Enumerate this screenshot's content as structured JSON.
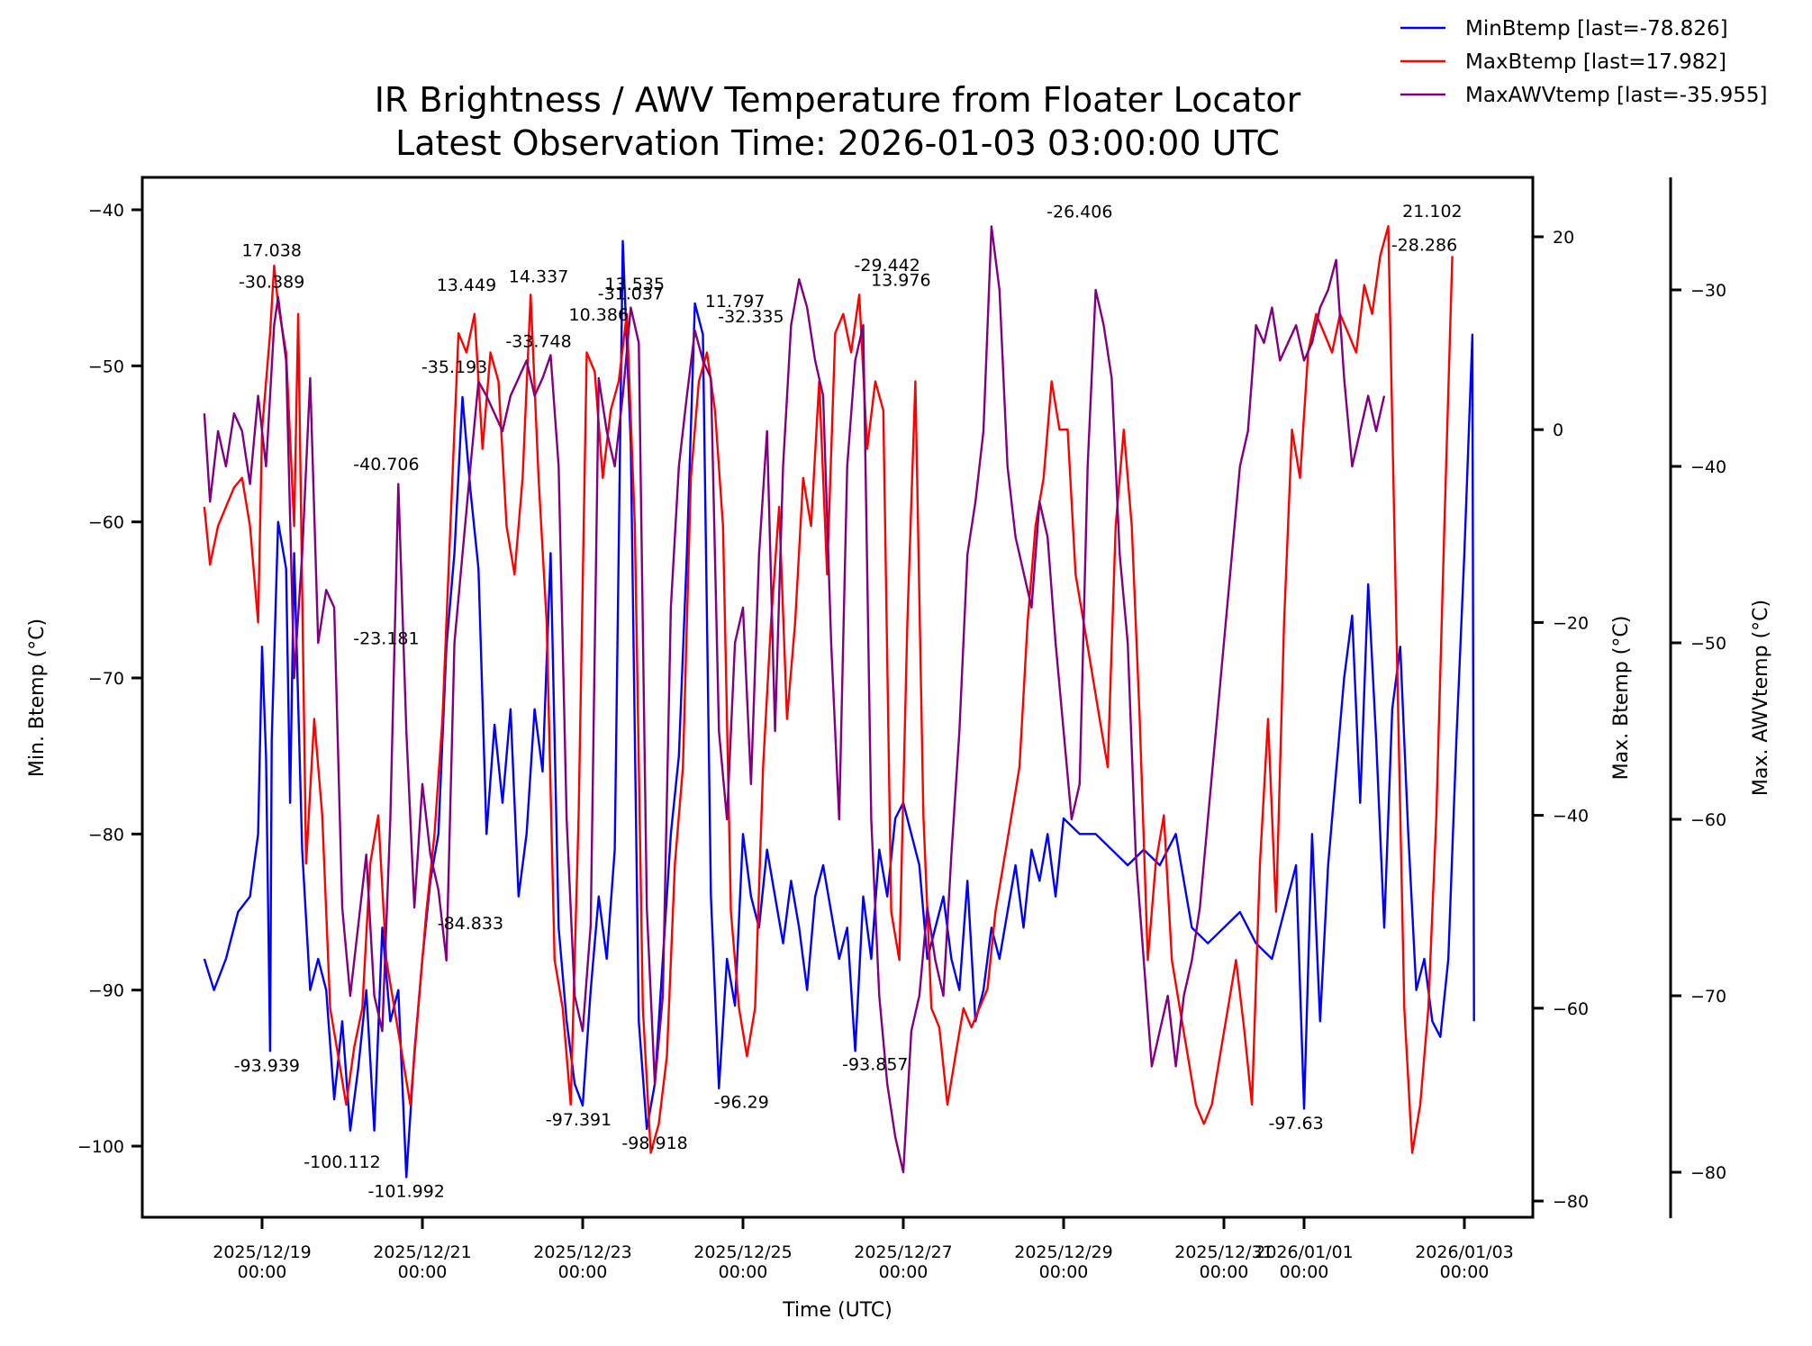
{
  "chart_data": {
    "type": "line",
    "title": "IR Brightness / AWV Temperature from Floater Locator",
    "subtitle": "Latest Observation Time: 2026-01-03 03:00:00 UTC",
    "xlabel": "Time (UTC)",
    "x_start": "2025-12-18T06:45:00Z",
    "x_end": "2026-01-03T03:00:00Z",
    "xlim_days_from_2025_12_19": [
      -1.16,
      15.48
    ],
    "x_ticks": [
      {
        "day": 0,
        "label": [
          "2025/12/19",
          "00:00"
        ]
      },
      {
        "day": 2,
        "label": [
          "2025/12/21",
          "00:00"
        ]
      },
      {
        "day": 4,
        "label": [
          "2025/12/23",
          "00:00"
        ]
      },
      {
        "day": 6,
        "label": [
          "2025/12/25",
          "00:00"
        ]
      },
      {
        "day": 8,
        "label": [
          "2025/12/27",
          "00:00"
        ]
      },
      {
        "day": 10,
        "label": [
          "2025/12/29",
          "00:00"
        ]
      },
      {
        "day": 12,
        "label": [
          "2025/12/31",
          "00:00"
        ]
      },
      {
        "day": 13,
        "label": [
          "2026/01/01",
          "00:00"
        ]
      },
      {
        "day": 15,
        "label": [
          "2026/01/03",
          "00:00"
        ]
      }
    ],
    "axes": [
      {
        "id": "left",
        "label": "Min. Btemp (°C)",
        "ylim": [
          -105,
          -38
        ],
        "ticks": [
          -40,
          -50,
          -60,
          -70,
          -80,
          -90,
          -100
        ],
        "tick_labels": [
          "−40",
          "−50",
          "−60",
          "−70",
          "−80",
          "−90",
          "−100"
        ]
      },
      {
        "id": "right1",
        "label": "Max. Btemp (°C)",
        "ylim": [
          -82,
          25
        ],
        "ticks": [
          20,
          0,
          -20,
          -40,
          -60,
          -80
        ],
        "tick_labels": [
          "20",
          "0",
          "−20",
          "−40",
          "−60",
          "−80"
        ]
      },
      {
        "id": "right2",
        "label": "Max. AWVtemp (°C)",
        "ylim": [
          -83,
          -30.8
        ],
        "ticks": [
          -30,
          -40,
          -50,
          -60,
          -70,
          -80
        ],
        "tick_labels": [
          "−30",
          "−40",
          "−50",
          "−60",
          "−70",
          "−80"
        ]
      }
    ],
    "legend": {
      "placement": "top-right",
      "entries": [
        {
          "label": "MinBtemp [last=-78.826]",
          "color": "#0000ff"
        },
        {
          "label": "MaxBtemp [last=17.982]",
          "color": "#ff0000"
        },
        {
          "label": "MaxAWVtemp [last=-35.955]",
          "color": "#800080"
        }
      ]
    },
    "series": [
      {
        "name": "MinBtemp",
        "axis": "left",
        "color": "#0000ff",
        "last": -78.826,
        "x_days": [
          -0.72,
          -0.6,
          -0.45,
          -0.3,
          -0.15,
          -0.05,
          0.0,
          0.05,
          0.1,
          0.12,
          0.2,
          0.3,
          0.35,
          0.4,
          0.5,
          0.6,
          0.7,
          0.8,
          0.9,
          1.0,
          1.1,
          1.2,
          1.3,
          1.4,
          1.5,
          1.6,
          1.7,
          1.8,
          1.9,
          2.0,
          2.1,
          2.2,
          2.3,
          2.4,
          2.5,
          2.6,
          2.7,
          2.8,
          2.9,
          3.0,
          3.1,
          3.2,
          3.3,
          3.4,
          3.5,
          3.6,
          3.7,
          3.8,
          3.9,
          4.0,
          4.1,
          4.2,
          4.3,
          4.4,
          4.5,
          4.6,
          4.7,
          4.8,
          4.9,
          5.0,
          5.1,
          5.2,
          5.3,
          5.4,
          5.5,
          5.6,
          5.7,
          5.8,
          5.9,
          6.0,
          6.1,
          6.2,
          6.3,
          6.4,
          6.5,
          6.6,
          6.7,
          6.8,
          6.9,
          7.0,
          7.1,
          7.2,
          7.3,
          7.4,
          7.5,
          7.6,
          7.7,
          7.8,
          7.9,
          8.0,
          8.1,
          8.2,
          8.3,
          8.4,
          8.5,
          8.6,
          8.7,
          8.8,
          8.9,
          9.0,
          9.1,
          9.2,
          9.3,
          9.4,
          9.5,
          9.6,
          9.7,
          9.8,
          9.9,
          10.0,
          10.2,
          10.4,
          10.6,
          10.8,
          11.0,
          11.2,
          11.4,
          11.6,
          11.8,
          12.0,
          12.2,
          12.4,
          12.6,
          12.8,
          12.9,
          13.0,
          13.1,
          13.2,
          13.3,
          13.4,
          13.5,
          13.6,
          13.7,
          13.8,
          13.9,
          14.0,
          14.1,
          14.2,
          14.3,
          14.4,
          14.5,
          14.6,
          14.7,
          14.8,
          14.9,
          15.0,
          15.1,
          15.12
        ],
        "values": [
          -88,
          -90,
          -88,
          -85,
          -84,
          -80,
          -68,
          -75,
          -93.9,
          -74,
          -60,
          -63,
          -78,
          -62,
          -81,
          -90,
          -88,
          -90,
          -97,
          -92,
          -99,
          -95,
          -90,
          -99,
          -86,
          -92,
          -90,
          -101.99,
          -94,
          -88,
          -83,
          -80,
          -68,
          -62,
          -52,
          -58,
          -63,
          -80,
          -73,
          -78,
          -72,
          -84,
          -80,
          -72,
          -76,
          -62,
          -86,
          -92,
          -96,
          -97.4,
          -90,
          -84,
          -88,
          -81,
          -42,
          -55,
          -92,
          -98.9,
          -96,
          -88,
          -80,
          -75,
          -62,
          -46,
          -48,
          -84,
          -96.3,
          -88,
          -91,
          -80,
          -84,
          -86,
          -81,
          -84,
          -87,
          -83,
          -86,
          -90,
          -84,
          -82,
          -85,
          -88,
          -86,
          -93.9,
          -84,
          -88,
          -81,
          -84,
          -79,
          -78,
          -80,
          -82,
          -88,
          -86,
          -84,
          -88,
          -90,
          -83,
          -92,
          -90,
          -86,
          -88,
          -85,
          -82,
          -86,
          -81,
          -83,
          -80,
          -84,
          -79,
          -80,
          -80,
          -81,
          -82,
          -81,
          -82,
          -80,
          -86,
          -87,
          -86,
          -85,
          -87,
          -88,
          -84,
          -82,
          -97.6,
          -80,
          -92,
          -82,
          -76,
          -70,
          -66,
          -78,
          -64,
          -74,
          -86,
          -72,
          -68,
          -80,
          -90,
          -88,
          -92,
          -93,
          -88,
          -74,
          -62,
          -48,
          -92,
          -80,
          -78.8
        ]
      },
      {
        "name": "MaxBtemp",
        "axis": "right1",
        "color": "#ff0000",
        "last": 17.982,
        "annotations": [
          17.038,
          13.449,
          14.337,
          10.386,
          13.535,
          11.797,
          13.976,
          21.102,
          -23.181,
          -100.112,
          -98.918
        ],
        "x_days": [
          -0.72,
          -0.65,
          -0.55,
          -0.45,
          -0.35,
          -0.25,
          -0.15,
          -0.05,
          0.0,
          0.1,
          0.15,
          0.2,
          0.3,
          0.4,
          0.45,
          0.55,
          0.65,
          0.75,
          0.85,
          0.95,
          1.05,
          1.15,
          1.25,
          1.35,
          1.45,
          1.55,
          1.65,
          1.75,
          1.85,
          1.95,
          2.05,
          2.15,
          2.25,
          2.35,
          2.45,
          2.55,
          2.65,
          2.75,
          2.85,
          2.95,
          3.05,
          3.15,
          3.25,
          3.35,
          3.45,
          3.55,
          3.65,
          3.75,
          3.85,
          3.95,
          4.05,
          4.15,
          4.25,
          4.35,
          4.45,
          4.55,
          4.65,
          4.75,
          4.85,
          4.95,
          5.05,
          5.15,
          5.25,
          5.35,
          5.45,
          5.55,
          5.65,
          5.75,
          5.85,
          5.95,
          6.05,
          6.15,
          6.25,
          6.35,
          6.45,
          6.55,
          6.65,
          6.75,
          6.85,
          6.95,
          7.05,
          7.15,
          7.25,
          7.35,
          7.45,
          7.55,
          7.65,
          7.75,
          7.85,
          7.95,
          8.05,
          8.15,
          8.25,
          8.35,
          8.45,
          8.55,
          8.65,
          8.75,
          8.85,
          8.95,
          9.05,
          9.15,
          9.25,
          9.35,
          9.45,
          9.55,
          9.65,
          9.75,
          9.85,
          9.95,
          10.05,
          10.15,
          10.25,
          10.35,
          10.45,
          10.55,
          10.65,
          10.75,
          10.85,
          10.95,
          11.05,
          11.15,
          11.25,
          11.35,
          11.45,
          11.55,
          11.65,
          11.75,
          11.85,
          11.95,
          12.05,
          12.15,
          12.25,
          12.35,
          12.45,
          12.55,
          12.65,
          12.75,
          12.85,
          12.95,
          13.05,
          13.15,
          13.25,
          13.35,
          13.45,
          13.55,
          13.65,
          13.75,
          13.85,
          13.95,
          14.05,
          14.15,
          14.25,
          14.35,
          14.45,
          14.55,
          14.65,
          14.75,
          14.85,
          14.95,
          15.05,
          15.12
        ],
        "values": [
          -8,
          -14,
          -10,
          -8,
          -6,
          -5,
          -10,
          -20,
          0,
          10,
          17,
          13,
          8,
          -10,
          12,
          -45,
          -30,
          -40,
          -60,
          -65,
          -70,
          -64,
          -60,
          -45,
          -40,
          -55,
          -60,
          -65,
          -70,
          -60,
          -50,
          -42,
          -30,
          -10,
          10,
          8,
          12,
          -2,
          8,
          5,
          -10,
          -15,
          -5,
          14,
          -5,
          -20,
          -55,
          -60,
          -70,
          -40,
          8,
          6,
          -5,
          2,
          5,
          12,
          -10,
          -60,
          -75,
          -72,
          -65,
          -45,
          -35,
          -5,
          5,
          8,
          2,
          -10,
          -50,
          -60,
          -65,
          -60,
          -35,
          -20,
          -8,
          -30,
          -20,
          -5,
          -10,
          5,
          -15,
          10,
          12,
          8,
          14,
          -2,
          5,
          2,
          -50,
          -55,
          -20,
          5,
          -40,
          -60,
          -62,
          -70,
          -65,
          -60,
          -62,
          -60,
          -58,
          -50,
          -45,
          -40,
          -35,
          -20,
          -10,
          -5,
          5,
          0,
          0,
          -15,
          -20,
          -25,
          -30,
          -35,
          -10,
          0,
          -10,
          -30,
          -55,
          -45,
          -40,
          -55,
          -60,
          -65,
          -70,
          -72,
          -70,
          -65,
          -60,
          -55,
          -62,
          -70,
          -45,
          -30,
          -50,
          -20,
          0,
          -5,
          8,
          12,
          10,
          8,
          12,
          10,
          8,
          15,
          12,
          18,
          21.1,
          -20,
          -60,
          -75,
          -70,
          -60,
          -40,
          -10,
          18
        ]
      },
      {
        "name": "MaxAWVtemp",
        "axis": "right2",
        "color": "#800080",
        "last": -35.955,
        "annotations": [
          -30.389,
          -35.193,
          -33.748,
          -31.037,
          -32.335,
          -29.442,
          -26.406,
          -28.286,
          -40.706
        ],
        "x_days": [
          -0.72,
          -0.65,
          -0.55,
          -0.45,
          -0.35,
          -0.25,
          -0.15,
          -0.05,
          0.05,
          0.15,
          0.2,
          0.3,
          0.4,
          0.5,
          0.6,
          0.7,
          0.8,
          0.9,
          1.0,
          1.1,
          1.2,
          1.3,
          1.4,
          1.5,
          1.6,
          1.7,
          1.8,
          1.9,
          2.0,
          2.1,
          2.2,
          2.3,
          2.4,
          2.5,
          2.6,
          2.7,
          2.8,
          2.9,
          3.0,
          3.1,
          3.2,
          3.3,
          3.4,
          3.5,
          3.6,
          3.7,
          3.8,
          3.9,
          4.0,
          4.1,
          4.2,
          4.3,
          4.4,
          4.5,
          4.6,
          4.7,
          4.8,
          4.9,
          5.0,
          5.1,
          5.2,
          5.3,
          5.4,
          5.5,
          5.6,
          5.7,
          5.8,
          5.9,
          6.0,
          6.1,
          6.2,
          6.3,
          6.4,
          6.5,
          6.6,
          6.7,
          6.8,
          6.9,
          7.0,
          7.1,
          7.2,
          7.3,
          7.4,
          7.5,
          7.6,
          7.7,
          7.8,
          7.9,
          8.0,
          8.1,
          8.2,
          8.3,
          8.4,
          8.5,
          8.6,
          8.7,
          8.8,
          8.9,
          9.0,
          9.1,
          9.2,
          9.3,
          9.4,
          9.5,
          9.6,
          9.7,
          9.8,
          9.9,
          10.0,
          10.1,
          10.2,
          10.3,
          10.4,
          10.5,
          10.6,
          10.7,
          10.8,
          10.9,
          11.0,
          11.1,
          11.2,
          11.3,
          11.4,
          11.5,
          11.6,
          11.7,
          11.8,
          11.9,
          12.0,
          12.1,
          12.2,
          12.3,
          12.4,
          12.5,
          12.6,
          12.7,
          12.8,
          12.9,
          13.0,
          13.1,
          13.2,
          13.3,
          13.4,
          13.5,
          13.6,
          13.7,
          13.8,
          13.9,
          14.0,
          14.1,
          14.2,
          14.3,
          14.4,
          14.5,
          14.6,
          14.7,
          14.8,
          14.9,
          15.0,
          15.1,
          15.12
        ],
        "values": [
          -37,
          -42,
          -38,
          -40,
          -37,
          -38,
          -41,
          -36,
          -40,
          -32,
          -30.4,
          -34,
          -52,
          -45,
          -35,
          -50,
          -47,
          -48,
          -65,
          -70,
          -66,
          -62,
          -70,
          -72,
          -60,
          -41,
          -55,
          -65,
          -58,
          -62,
          -64,
          -68,
          -50,
          -45,
          -40,
          -35.2,
          -36,
          -37,
          -38,
          -36,
          -35,
          -34,
          -36,
          -35,
          -33.7,
          -40,
          -60,
          -70,
          -72,
          -66,
          -35,
          -38,
          -40,
          -36,
          -31,
          -33,
          -65,
          -75,
          -70,
          -48,
          -40,
          -36,
          -32.3,
          -34,
          -35,
          -55,
          -60,
          -50,
          -48,
          -58,
          -45,
          -38,
          -55,
          -40,
          -32,
          -29.4,
          -31,
          -34,
          -36,
          -50,
          -60,
          -40,
          -34,
          -32,
          -60,
          -70,
          -75,
          -78,
          -80,
          -72,
          -70,
          -65,
          -68,
          -70,
          -62,
          -55,
          -45,
          -42,
          -38,
          -26.4,
          -30,
          -40,
          -44,
          -46,
          -48,
          -42,
          -44,
          -50,
          -55,
          -60,
          -58,
          -40,
          -30,
          -32,
          -35,
          -45,
          -50,
          -62,
          -68,
          -74,
          -72,
          -70,
          -74,
          -70,
          -68,
          -65,
          -60,
          -55,
          -50,
          -45,
          -40,
          -38,
          -32,
          -33,
          -31,
          -34,
          -33,
          -32,
          -34,
          -33,
          -31,
          -30,
          -28.3,
          -35,
          -40,
          -38,
          -36,
          -38,
          -36.0
        ]
      }
    ]
  }
}
